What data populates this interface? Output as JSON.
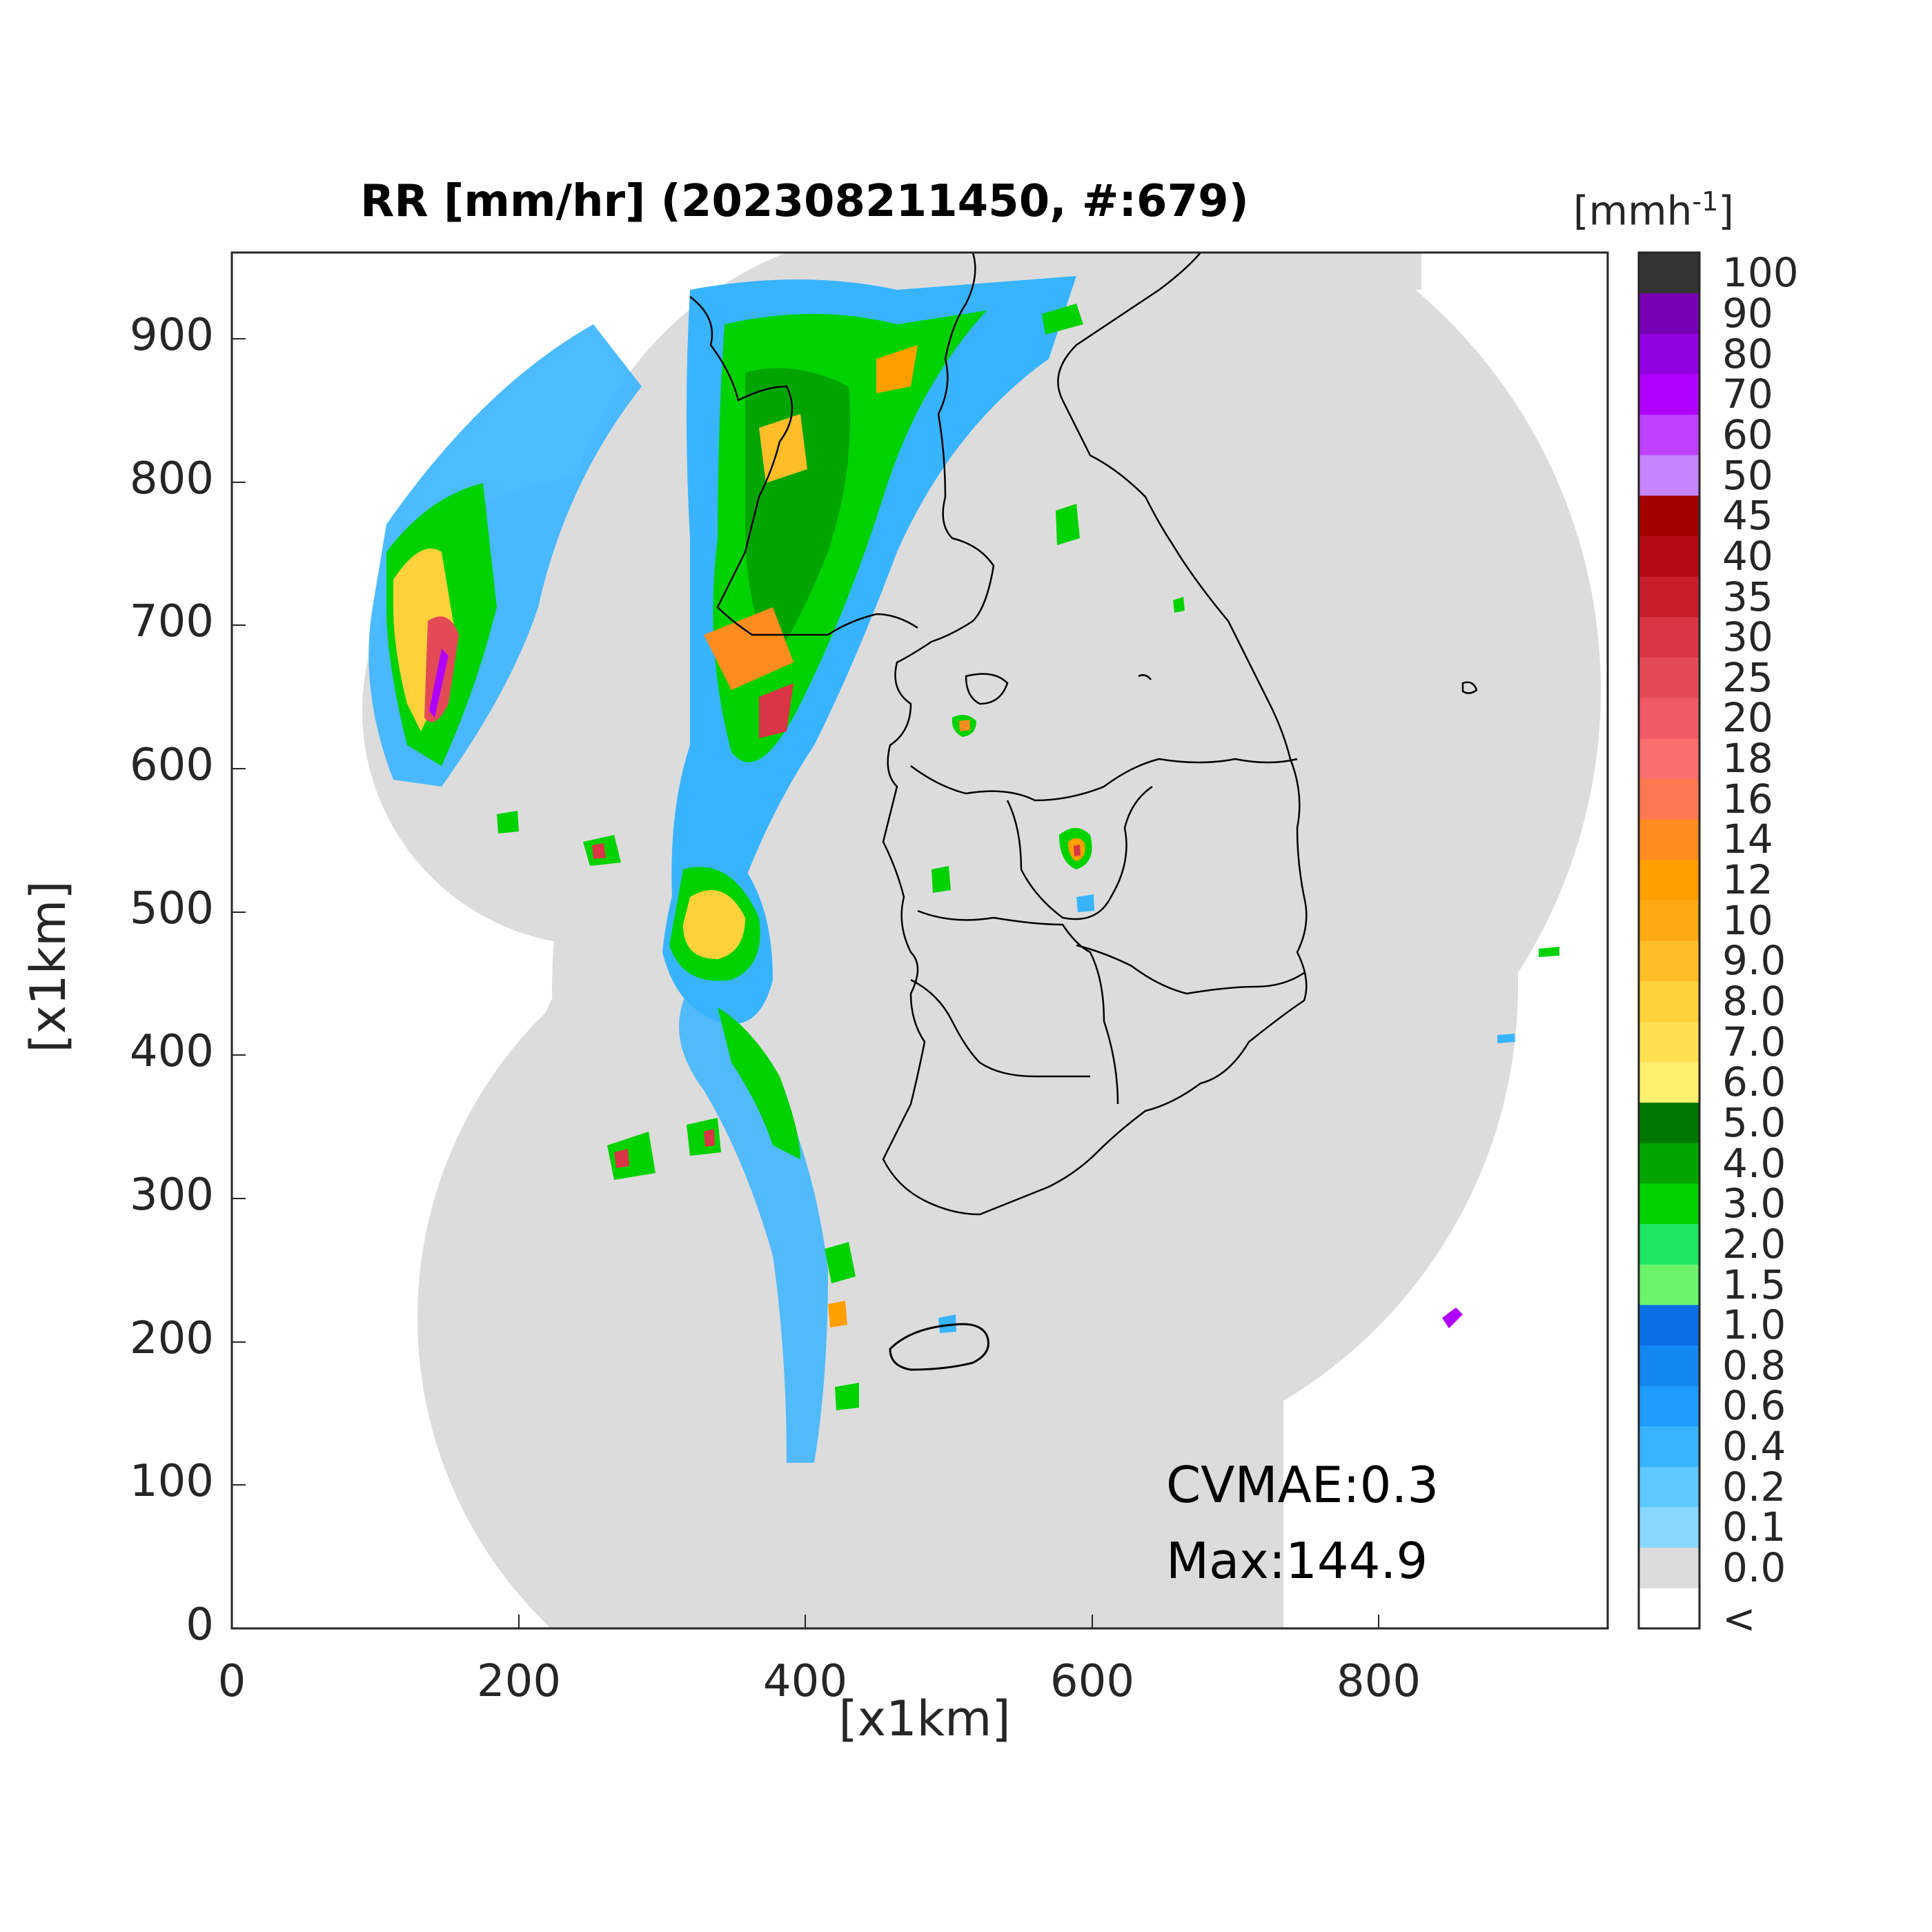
{
  "title": "RR [mm/hr] (202308211450, #:679)",
  "xlabel": "[x1km]",
  "ylabel": "[x1km]",
  "xticks": [
    "0",
    "200",
    "400",
    "600",
    "800"
  ],
  "yticks": [
    "0",
    "100",
    "200",
    "300",
    "400",
    "500",
    "600",
    "700",
    "800",
    "900"
  ],
  "colorbar": {
    "unit": "[mmh",
    "unit_sup": "-1",
    "unit_close": "]",
    "labels": [
      "<",
      "0.0",
      "0.1",
      "0.2",
      "0.4",
      "0.6",
      "0.8",
      "1.0",
      "1.5",
      "2.0",
      "3.0",
      "4.0",
      "5.0",
      "6.0",
      "7.0",
      "8.0",
      "9.0",
      "10",
      "12",
      "14",
      "16",
      "18",
      "20",
      "25",
      "30",
      "35",
      "40",
      "45",
      "50",
      "60",
      "70",
      "80",
      "90",
      "100"
    ],
    "colors": [
      "#ffffff",
      "#dcdcdc",
      "#8ad8ff",
      "#5ec8ff",
      "#38b4ff",
      "#1e9cff",
      "#1487f0",
      "#0a6fe6",
      "#6cf46c",
      "#1ee664",
      "#00d200",
      "#00a500",
      "#007800",
      "#fff06e",
      "#ffe050",
      "#ffd23c",
      "#ffbe28",
      "#ffaa14",
      "#ffa000",
      "#ff8c1e",
      "#ff7850",
      "#fa6e6e",
      "#f05a64",
      "#e44a56",
      "#d83644",
      "#c81e2c",
      "#b40a14",
      "#a00000",
      "#c884ff",
      "#c040ff",
      "#b000ff",
      "#9000e0",
      "#7800b4",
      "#333333"
    ]
  },
  "annotations": {
    "cvmae": "CVMAE:0.3",
    "max": "Max:144.9"
  },
  "map": {
    "x_range": [
      0,
      960
    ],
    "y_range": [
      0,
      960
    ],
    "units": "x1km",
    "coverage_color": "#dcdcdc",
    "border_color": "#000000"
  }
}
